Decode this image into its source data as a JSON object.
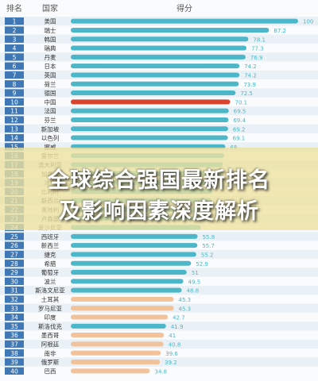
{
  "headline": {
    "line1": "全球综合强国最新排名",
    "line2": "及影响因素深度解析"
  },
  "chart_data": {
    "type": "bar",
    "orientation": "horizontal",
    "headers": {
      "rank": "排名",
      "country": "国家",
      "score": "得分"
    },
    "ranks": [
      "1",
      "2",
      "3",
      "4",
      "5",
      "6",
      "7",
      "8",
      "9",
      "10",
      "11",
      "12",
      "13",
      "14",
      "15",
      "16",
      "17",
      "18",
      "19",
      "20",
      "21",
      "22",
      "23",
      "24",
      "25",
      "26",
      "27",
      "28",
      "29",
      "30",
      "31",
      "32",
      "33",
      "34",
      "35",
      "36",
      "37",
      "38",
      "39",
      "40"
    ],
    "categories": [
      "美国",
      "瑞士",
      "韩国",
      "瑞典",
      "丹麦",
      "日本",
      "英国",
      "荷兰",
      "德国",
      "中国",
      "法国",
      "芬兰",
      "新加坡",
      "以色列",
      "挪威",
      "爱尔兰",
      "澳大利亚",
      "加拿大",
      "冰岛",
      "比利时",
      "新西兰",
      "奥地利",
      "卢森堡",
      "爱沙尼亚",
      "西班牙",
      "新西兰",
      "捷克",
      "希腊",
      "葡萄牙",
      "波兰",
      "斯洛文尼亚",
      "土耳其",
      "罗马尼亚",
      "印度",
      "斯洛伐克",
      "墨西哥",
      "阿根廷",
      "南非",
      "俄罗斯",
      "巴西"
    ],
    "values": [
      100,
      87.2,
      78.1,
      77.3,
      76.9,
      74.2,
      74.2,
      73.9,
      72.5,
      70.1,
      69.5,
      69.4,
      69.2,
      69.1,
      68,
      67.5,
      66.9,
      66.4,
      64.2,
      62.3,
      61.8,
      60.5,
      58.9,
      57.2,
      55.8,
      55.7,
      55.2,
      52.9,
      51,
      49.5,
      48.8,
      45.3,
      45.3,
      42.7,
      41.9,
      41,
      40.8,
      39.6,
      39.2,
      34.8
    ],
    "value_labels": [
      "100",
      "87.2",
      "78.1",
      "77.3",
      "76.9",
      "74.2",
      "74.2",
      "73.9",
      "72.5",
      "70.1",
      "69.5",
      "69.4",
      "69.2",
      "69.1",
      "68",
      "",
      "",
      "",
      "",
      "",
      "",
      "",
      "",
      "",
      "55.8",
      "55.7",
      "55.2",
      "52.9",
      "51",
      "49.5",
      "48.8",
      "45.3",
      "45.3",
      "42.7",
      "41.9",
      "41",
      "40.8",
      "39.6",
      "39.2",
      "34.8"
    ],
    "bar_colors": [
      "#4bb7c8",
      "#4bb7c8",
      "#4bb7c8",
      "#4bb7c8",
      "#4bb7c8",
      "#4bb7c8",
      "#4bb7c8",
      "#4bb7c8",
      "#4bb7c8",
      "#d9442e",
      "#4bb7c8",
      "#4bb7c8",
      "#4bb7c8",
      "#4bb7c8",
      "#4bb7c8",
      "#4bb7c8",
      "#4bb7c8",
      "#4bb7c8",
      "#4bb7c8",
      "#4bb7c8",
      "#4bb7c8",
      "#4bb7c8",
      "#4bb7c8",
      "#4bb7c8",
      "#4bb7c8",
      "#4bb7c8",
      "#4bb7c8",
      "#4bb7c8",
      "#4bb7c8",
      "#4bb7c8",
      "#4bb7c8",
      "#f2c39a",
      "#f2c39a",
      "#f2c39a",
      "#4bb7c8",
      "#f2c39a",
      "#f2c39a",
      "#f2c39a",
      "#f2c39a",
      "#f2c39a"
    ],
    "xlim": [
      0,
      100
    ],
    "grid": false,
    "colors": {
      "rank_box": "#3f78b5",
      "bar_default": "#4bb7c8",
      "bar_highlight": "#d9442e",
      "bar_light": "#f2c39a",
      "row_stripe": "#eaf1f6",
      "label_text": "#4bb7c8"
    }
  }
}
